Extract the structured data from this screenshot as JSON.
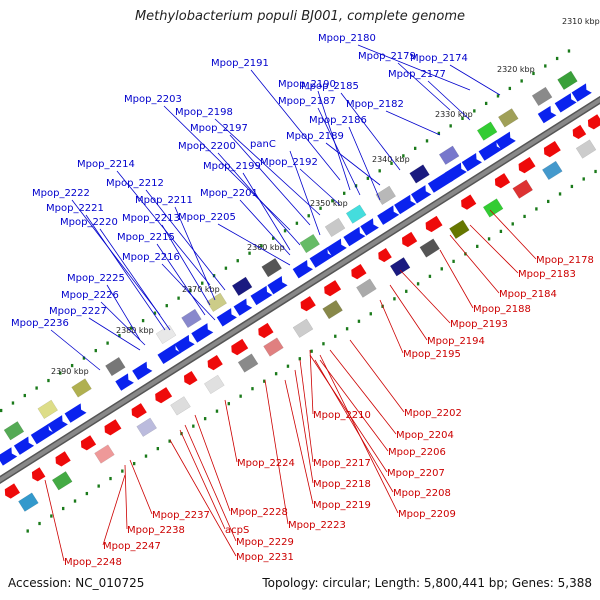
{
  "title": "Methylobacterium populi BJ001, complete genome",
  "footer": {
    "accession": "Accession: NC_010725",
    "topology": "Topology: circular; Length: 5,800,441 bp; Genes: 5,388"
  },
  "colors": {
    "backbone": "#888888",
    "forward_label": "#0000cc",
    "reverse_label": "#cc0000",
    "forward_arrow": "#0a22ee",
    "reverse_arrow": "#ee0a0a",
    "tick": "#1a7a1a"
  },
  "scale_labels": [
    "2310 kbp",
    "2320 kbp",
    "2330 kbp",
    "2340 kbp",
    "2350 kbp",
    "2360 kbp",
    "2370 kbp",
    "2380 kbp",
    "2390 kbp"
  ],
  "forward_genes": [
    "Mpop_2180",
    "Mpop_2191",
    "Mpop_2179",
    "Mpop_2174",
    "Mpop_2190",
    "Mpop_2177",
    "Mpop_2185",
    "Mpop_2203",
    "Mpop_2187",
    "Mpop_2182",
    "Mpop_2198",
    "Mpop_2186",
    "Mpop_2197",
    "panC",
    "Mpop_2189",
    "Mpop_2200",
    "Mpop_2192",
    "Mpop_2199",
    "Mpop_2214",
    "Mpop_2212",
    "Mpop_2201",
    "Mpop_2222",
    "Mpop_2211",
    "Mpop_2221",
    "Mpop_2213",
    "Mpop_2205",
    "Mpop_2220",
    "Mpop_2215",
    "Mpop_2216",
    "Mpop_2225",
    "Mpop_2226",
    "Mpop_2227",
    "Mpop_2236"
  ],
  "reverse_genes": [
    "Mpop_2178",
    "Mpop_2183",
    "Mpop_2184",
    "Mpop_2188",
    "Mpop_2193",
    "Mpop_2194",
    "Mpop_2195",
    "Mpop_2202",
    "Mpop_2210",
    "Mpop_2204",
    "Mpop_2206",
    "Mpop_2224",
    "Mpop_2217",
    "Mpop_2207",
    "Mpop_2218",
    "Mpop_2208",
    "Mpop_2219",
    "Mpop_2237",
    "Mpop_2228",
    "Mpop_2209",
    "Mpop_2223",
    "Mpop_2238",
    "acpS",
    "Mpop_2229",
    "Mpop_2247",
    "Mpop_2231",
    "Mpop_2248"
  ]
}
